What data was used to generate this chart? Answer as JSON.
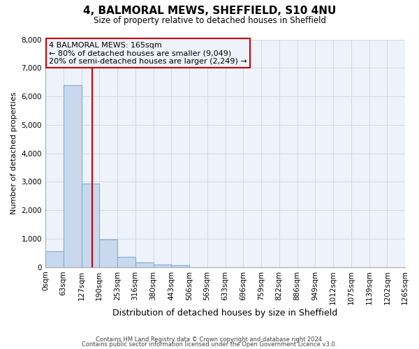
{
  "title": "4, BALMORAL MEWS, SHEFFIELD, S10 4NU",
  "subtitle": "Size of property relative to detached houses in Sheffield",
  "xlabel": "Distribution of detached houses by size in Sheffield",
  "ylabel": "Number of detached properties",
  "bin_edges": [
    0,
    63,
    127,
    190,
    253,
    316,
    380,
    443,
    506,
    569,
    633,
    696,
    759,
    822,
    886,
    949,
    1012,
    1075,
    1139,
    1202,
    1265
  ],
  "bar_heights": [
    550,
    6400,
    2930,
    970,
    370,
    175,
    100,
    80,
    0,
    0,
    0,
    0,
    0,
    0,
    0,
    0,
    0,
    0,
    0,
    0
  ],
  "bar_color": "#c8d9ee",
  "bar_edge_color": "#7aadd4",
  "vline_x": 165,
  "vline_color": "#cc0000",
  "annotation_line1": "4 BALMORAL MEWS: 165sqm",
  "annotation_line2": "← 80% of detached houses are smaller (9,049)",
  "annotation_line3": "20% of semi-detached houses are larger (2,249) →",
  "annotation_box_edge_color": "#cc0000",
  "ylim": [
    0,
    8000
  ],
  "yticks": [
    0,
    1000,
    2000,
    3000,
    4000,
    5000,
    6000,
    7000,
    8000
  ],
  "grid_color": "#d0d8e8",
  "plot_bg_color": "#eef2fa",
  "fig_bg_color": "#ffffff",
  "footnote1": "Contains HM Land Registry data © Crown copyright and database right 2024.",
  "footnote2": "Contains public sector information licensed under the Open Government Licence v3.0.",
  "tick_labels": [
    "0sqm",
    "63sqm",
    "127sqm",
    "190sqm",
    "253sqm",
    "316sqm",
    "380sqm",
    "443sqm",
    "506sqm",
    "569sqm",
    "633sqm",
    "696sqm",
    "759sqm",
    "822sqm",
    "886sqm",
    "949sqm",
    "1012sqm",
    "1075sqm",
    "1139sqm",
    "1202sqm",
    "1265sqm"
  ]
}
